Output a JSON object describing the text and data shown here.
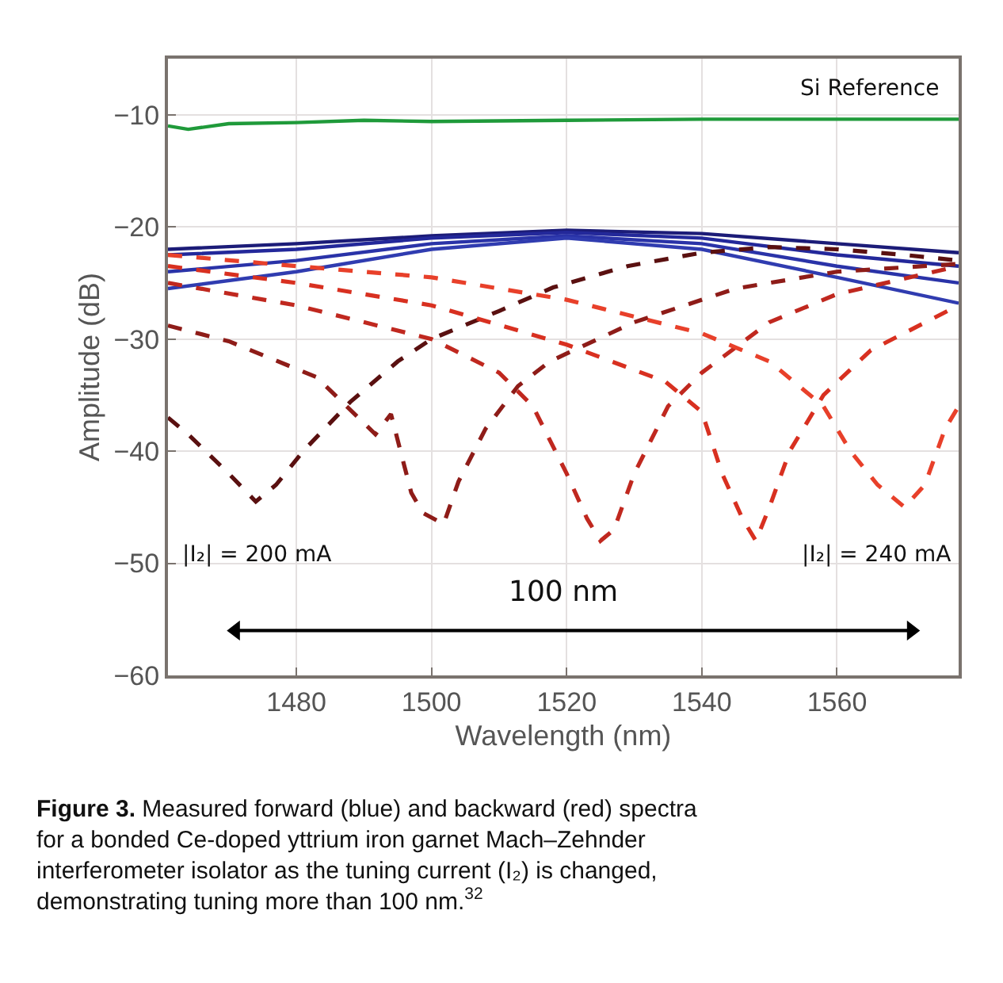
{
  "chart_data": {
    "type": "line",
    "xlabel": "Wavelength (nm)",
    "ylabel": "Amplitude (dB)",
    "xlim": [
      1461,
      1578
    ],
    "xticks": [
      1480,
      1500,
      1520,
      1540,
      1560
    ],
    "ylim": [
      -60,
      -5
    ],
    "yticks": [
      -60,
      -50,
      -40,
      -30,
      -20,
      -10
    ],
    "grid": true,
    "marker": "none",
    "series": [
      {
        "color": "#1f9a3a",
        "line_style": "solid",
        "x": [
          1461,
          1464,
          1470,
          1480,
          1490,
          1500,
          1520,
          1540,
          1560,
          1578
        ],
        "values": [
          -11,
          -11.3,
          -10.8,
          -10.7,
          -10.5,
          -10.6,
          -10.5,
          -10.4,
          -10.4,
          -10.4
        ]
      },
      {
        "color": "#1c1c78",
        "line_style": "solid",
        "x": [
          1461,
          1480,
          1500,
          1520,
          1540,
          1560,
          1578
        ],
        "values": [
          -22,
          -21.5,
          -20.8,
          -20.3,
          -20.6,
          -21.5,
          -22.3
        ]
      },
      {
        "color": "#23289a",
        "line_style": "solid",
        "x": [
          1461,
          1480,
          1500,
          1520,
          1540,
          1560,
          1578
        ],
        "values": [
          -22.5,
          -22,
          -21,
          -20.5,
          -21,
          -22.5,
          -23.5
        ]
      },
      {
        "color": "#2a33a8",
        "line_style": "solid",
        "x": [
          1461,
          1480,
          1500,
          1520,
          1540,
          1560,
          1578
        ],
        "values": [
          -24,
          -23,
          -21.5,
          -20.8,
          -21.5,
          -23.5,
          -25
        ]
      },
      {
        "color": "#303cb0",
        "line_style": "solid",
        "x": [
          1461,
          1480,
          1500,
          1520,
          1540,
          1560,
          1578
        ],
        "values": [
          -25.5,
          -24,
          -22,
          -21,
          -22,
          -24.5,
          -26.8
        ]
      },
      {
        "color": "#5a1010",
        "line_style": "dashed",
        "x": [
          1461,
          1464,
          1470,
          1474,
          1477,
          1481,
          1488,
          1495,
          1500,
          1510,
          1518,
          1529,
          1540,
          1550,
          1560,
          1570,
          1578
        ],
        "values": [
          -37,
          -38.5,
          -42,
          -44.5,
          -43,
          -40,
          -35.6,
          -32,
          -30,
          -27.5,
          -25.4,
          -23.5,
          -22.3,
          -21.8,
          -22,
          -22.5,
          -23
        ]
      },
      {
        "color": "#8e1c18",
        "line_style": "dashed",
        "x": [
          1461,
          1470,
          1483,
          1491.7,
          1494,
          1497,
          1498.7,
          1501.8,
          1504,
          1508,
          1512.8,
          1517.5,
          1530,
          1545,
          1560,
          1578
        ],
        "values": [
          -28.8,
          -30.2,
          -33.4,
          -38.5,
          -36.7,
          -43.7,
          -45.5,
          -46.5,
          -42.7,
          -38,
          -34.2,
          -32,
          -28.5,
          -25.5,
          -24,
          -23.3
        ]
      },
      {
        "color": "#c0281f",
        "line_style": "dashed",
        "x": [
          1461,
          1480,
          1500,
          1510,
          1515,
          1520,
          1523,
          1525,
          1527,
          1530,
          1535,
          1540,
          1550,
          1560,
          1578
        ],
        "values": [
          -25,
          -27,
          -30,
          -33,
          -36,
          -42,
          -46,
          -48,
          -47,
          -42,
          -36,
          -33,
          -28.5,
          -26,
          -23.5
        ]
      },
      {
        "color": "#d83020",
        "line_style": "dashed",
        "x": [
          1461,
          1480,
          1500,
          1520,
          1534.6,
          1540,
          1543,
          1546,
          1548,
          1550,
          1553,
          1558,
          1565,
          1578
        ],
        "values": [
          -23.5,
          -25,
          -27,
          -30.5,
          -33.8,
          -36.5,
          -42,
          -46,
          -48,
          -45,
          -40,
          -35,
          -31,
          -27
        ]
      },
      {
        "color": "#e8402a",
        "line_style": "dashed",
        "x": [
          1461,
          1480,
          1500,
          1520,
          1540,
          1550,
          1558,
          1562,
          1566,
          1570,
          1573,
          1576,
          1578
        ],
        "values": [
          -22.5,
          -23.5,
          -24.5,
          -26.5,
          -29.5,
          -32,
          -36,
          -40,
          -43,
          -45,
          -43,
          -38,
          -36
        ]
      },
      {
        "color": "#000000",
        "line_style": "solid",
        "marker": "triangle",
        "x": [
          1471,
          1571
        ],
        "values": [
          -56,
          -56
        ]
      }
    ],
    "annotations": [
      "Si Reference",
      "|I₂| = 200 mA",
      "|I₂| = 240 mA",
      "100 nm",
      "Figure 3. Measured forward (blue) and backward (red) spectra for a bonded Ce-doped yttrium iron garnet Mach–Zehnder interferometer isolator as the tuning current (I₂) is changed, demonstrating tuning more than 100 nm.$^{32}$"
    ]
  }
}
